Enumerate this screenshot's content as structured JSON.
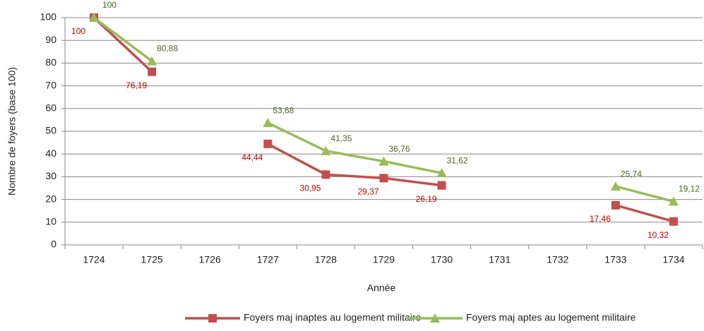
{
  "chart_data": {
    "type": "line",
    "x_label": "Année",
    "y_label": "Nombre de foyers (base 100)",
    "categories": [
      "1724",
      "1725",
      "1726",
      "1727",
      "1728",
      "1729",
      "1730",
      "1731",
      "1732",
      "1733",
      "1734"
    ],
    "series": [
      {
        "name": "Foyers maj inaptes au logement militaire",
        "color": "#c0504d",
        "marker": "square",
        "values": [
          100,
          76.19,
          null,
          44.44,
          30.95,
          29.37,
          26.19,
          null,
          null,
          17.46,
          10.32
        ],
        "value_labels": [
          "100",
          "76,19",
          null,
          "44,44",
          "30,95",
          "29,37",
          "26,19",
          null,
          null,
          "17,46",
          "10,32"
        ]
      },
      {
        "name": "Foyers maj aptes au logement militaire",
        "color": "#9bbb59",
        "marker": "triangle",
        "values": [
          100,
          80.88,
          null,
          53.68,
          41.35,
          36.76,
          31.62,
          null,
          null,
          25.74,
          19.12
        ],
        "value_labels": [
          "100",
          "80,88",
          null,
          "53,68",
          "41,35",
          "36,76",
          "31,62",
          null,
          null,
          "25,74",
          "19,12"
        ]
      }
    ],
    "ylim": [
      0,
      100
    ],
    "yticks": [
      0,
      10,
      20,
      30,
      40,
      50,
      60,
      70,
      80,
      90,
      100
    ],
    "grid": true,
    "legend": "bottom"
  }
}
